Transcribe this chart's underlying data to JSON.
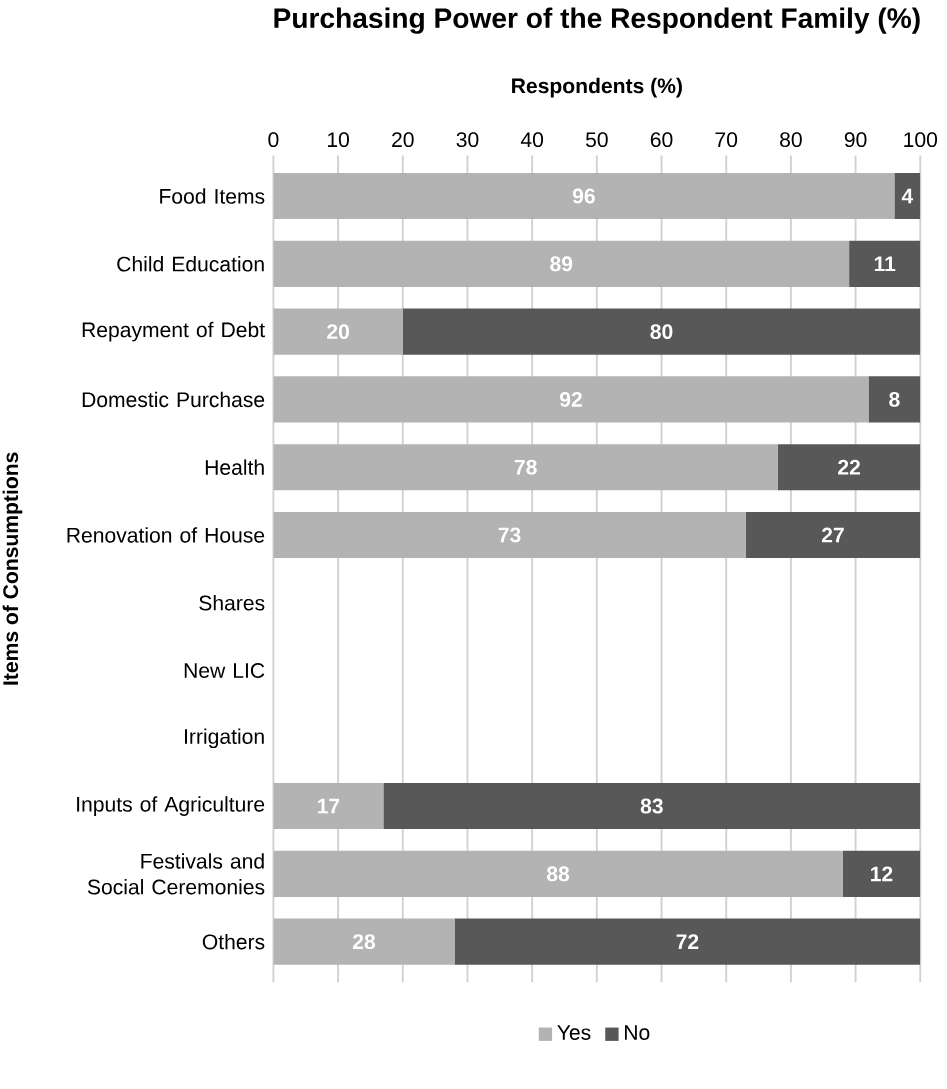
{
  "chart_data": {
    "type": "bar",
    "orientation": "horizontal",
    "stacked": true,
    "title": "Purchasing Power of the Respondent Family (%)",
    "xlabel": "Respondents (%)",
    "ylabel": "Items of Consumptions",
    "categories": [
      "Food Items",
      "Child Education",
      "Repayment of Debt",
      "Domestic Purchase",
      "Health",
      "Renovation of House",
      "Shares",
      "New LIC",
      "Irrigation",
      "Inputs of Agriculture",
      "Festivals and Social Ceremonies",
      "Others"
    ],
    "series": [
      {
        "name": "Yes",
        "color": "#b3b3b3",
        "values": [
          96,
          89,
          20,
          92,
          78,
          73,
          null,
          null,
          null,
          17,
          88,
          28
        ]
      },
      {
        "name": "No",
        "color": "#585858",
        "values": [
          4,
          11,
          80,
          8,
          22,
          27,
          null,
          null,
          null,
          83,
          12,
          72
        ]
      }
    ],
    "xlim": [
      0,
      100
    ],
    "xticks": [
      0,
      10,
      20,
      30,
      40,
      50,
      60,
      70,
      80,
      90,
      100
    ],
    "grid": "x",
    "legend": "bottom",
    "data_labels": true
  }
}
